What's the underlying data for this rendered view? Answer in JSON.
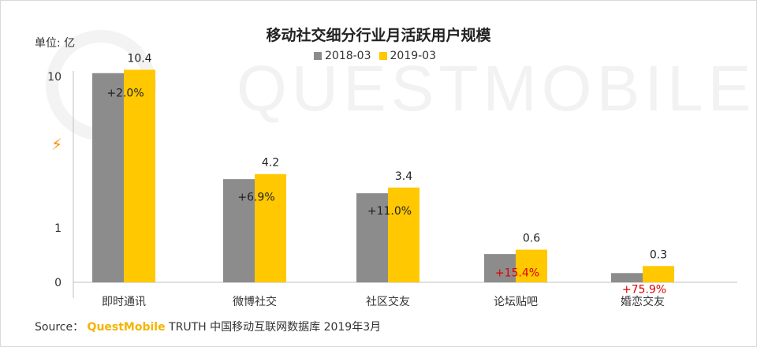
{
  "chart_data": {
    "type": "bar",
    "title": "移动社交细分行业月活跃用户规模",
    "unit_label": "单位: 亿",
    "categories": [
      "即时通讯",
      "微博社交",
      "社区交友",
      "论坛贴吧",
      "婚恋交友"
    ],
    "series": [
      {
        "name": "2018-03",
        "values": [
          10.2,
          3.9,
          3.06,
          0.52,
          0.17
        ],
        "color": "#8c8c8c"
      },
      {
        "name": "2019-03",
        "values": [
          10.4,
          4.2,
          3.4,
          0.6,
          0.3
        ],
        "color": "#ffc800"
      }
    ],
    "value_labels": [
      "10.4",
      "4.2",
      "3.4",
      "0.6",
      "0.3"
    ],
    "growth_labels": [
      "+2.0%",
      "+6.9%",
      "+11.0%",
      "+15.4%",
      "+75.9%"
    ],
    "growth_colors": [
      "#222222",
      "#222222",
      "#222222",
      "#e00000",
      "#e00000"
    ],
    "y_ticks": [
      "0",
      "1",
      "10"
    ],
    "y_scale": "broken",
    "axis_break_symbol": "⚡",
    "grid": false,
    "legend_position": "top-center"
  },
  "source": {
    "prefix": "Source：",
    "brand": "QuestMobile",
    "text": " TRUTH 中国移动互联网数据库 2019年3月"
  },
  "watermark": "QUESTMOBILE"
}
